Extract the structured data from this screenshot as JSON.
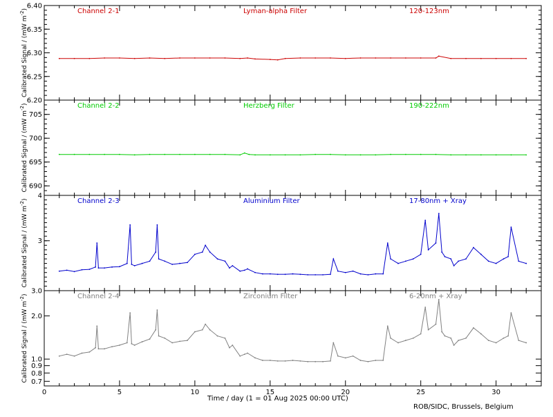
{
  "footer": {
    "xlabel": "Time / day (1 = 01 Aug 2025 00:00 UTC)",
    "credit": "ROB/SIDC, Brussels, Belgium"
  },
  "x_axis": {
    "range": [
      0,
      33
    ],
    "tick_labels": [
      "0",
      "5",
      "10",
      "15",
      "20",
      "25",
      "30"
    ],
    "tick_values": [
      0,
      5,
      10,
      15,
      20,
      25,
      30
    ],
    "minor_step": 1
  },
  "ylabel_common": "Calibrated Signal / (mW m",
  "ylabel_exp": "-2",
  "chart_data": [
    {
      "type": "line",
      "channel": "Channel 2-1",
      "filter": "Lyman-alpha Filter",
      "band": "120-123nm",
      "color": "#cc0000",
      "ylim": [
        6.2,
        6.4
      ],
      "y_ticks": [
        "6.20",
        "6.25",
        "6.30",
        "6.35",
        "6.40"
      ],
      "y_tick_values": [
        6.2,
        6.25,
        6.3,
        6.35,
        6.4
      ],
      "minor_step": 0.01,
      "x": [
        1.0,
        2.0,
        3.0,
        4.0,
        5.0,
        6.0,
        7.0,
        8.0,
        9.0,
        10.0,
        11.0,
        12.0,
        13.0,
        13.5,
        14.0,
        15.0,
        15.5,
        16.0,
        17.0,
        18.0,
        19.0,
        20.0,
        21.0,
        22.0,
        23.0,
        24.0,
        25.0,
        26.0,
        26.2,
        27.0,
        28.0,
        29.0,
        30.0,
        31.0,
        32.0
      ],
      "y": [
        6.288,
        6.288,
        6.288,
        6.289,
        6.289,
        6.288,
        6.289,
        6.288,
        6.289,
        6.289,
        6.289,
        6.289,
        6.288,
        6.289,
        6.287,
        6.286,
        6.285,
        6.288,
        6.289,
        6.289,
        6.289,
        6.288,
        6.289,
        6.289,
        6.289,
        6.289,
        6.289,
        6.289,
        6.293,
        6.288,
        6.288,
        6.288,
        6.288,
        6.288,
        6.288
      ]
    },
    {
      "type": "line",
      "channel": "Channel 2-2",
      "filter": "Herzberg Filter",
      "band": "190-222nm",
      "color": "#00cc00",
      "ylim": [
        688,
        708
      ],
      "y_ticks": [
        "690",
        "695",
        "700",
        "705"
      ],
      "y_tick_values": [
        690,
        695,
        700,
        705
      ],
      "minor_step": 1,
      "x": [
        1.0,
        2.0,
        3.0,
        4.0,
        5.0,
        6.0,
        7.0,
        8.0,
        9.0,
        10.0,
        11.0,
        12.0,
        13.0,
        13.3,
        13.6,
        14.0,
        15.0,
        16.0,
        17.0,
        18.0,
        19.0,
        20.0,
        21.0,
        22.0,
        23.0,
        24.0,
        25.0,
        26.0,
        27.0,
        28.0,
        29.0,
        30.0,
        31.0,
        32.0
      ],
      "y": [
        696.6,
        696.6,
        696.6,
        696.6,
        696.6,
        696.5,
        696.6,
        696.6,
        696.6,
        696.6,
        696.6,
        696.6,
        696.5,
        696.9,
        696.6,
        696.5,
        696.5,
        696.5,
        696.5,
        696.6,
        696.6,
        696.5,
        696.5,
        696.5,
        696.6,
        696.6,
        696.6,
        696.6,
        696.5,
        696.5,
        696.5,
        696.5,
        696.5,
        696.5
      ]
    },
    {
      "type": "line",
      "channel": "Channel 2-3",
      "filter": "Aluminium Filter",
      "band": "17-80nm + Xray",
      "color": "#0000cc",
      "ylim": [
        1.9,
        4.0
      ],
      "y_ticks": [
        "3",
        "4"
      ],
      "y_tick_values": [
        3,
        4
      ],
      "minor_step": 0.1,
      "x": [
        1.0,
        1.5,
        2.0,
        2.5,
        3.0,
        3.4,
        3.5,
        3.6,
        4.0,
        4.5,
        5.0,
        5.5,
        5.7,
        5.8,
        6.0,
        6.5,
        7.0,
        7.4,
        7.5,
        7.6,
        8.0,
        8.5,
        9.0,
        9.5,
        10.0,
        10.5,
        10.7,
        11.0,
        11.5,
        12.0,
        12.3,
        12.5,
        13.0,
        13.3,
        13.5,
        14.0,
        14.5,
        15.0,
        15.5,
        16.0,
        16.5,
        17.0,
        17.5,
        18.0,
        18.5,
        19.0,
        19.2,
        19.5,
        20.0,
        20.5,
        21.0,
        21.5,
        22.0,
        22.5,
        22.8,
        23.0,
        23.5,
        24.0,
        24.5,
        25.0,
        25.3,
        25.5,
        26.0,
        26.2,
        26.4,
        26.6,
        27.0,
        27.2,
        27.5,
        28.0,
        28.5,
        29.0,
        29.5,
        30.0,
        30.5,
        30.8,
        31.0,
        31.5,
        32.0
      ],
      "y": [
        2.33,
        2.35,
        2.32,
        2.36,
        2.37,
        2.42,
        2.95,
        2.4,
        2.4,
        2.42,
        2.43,
        2.5,
        3.35,
        2.48,
        2.45,
        2.5,
        2.55,
        2.75,
        3.35,
        2.6,
        2.55,
        2.48,
        2.5,
        2.52,
        2.7,
        2.75,
        2.9,
        2.75,
        2.6,
        2.55,
        2.4,
        2.45,
        2.33,
        2.35,
        2.38,
        2.3,
        2.27,
        2.27,
        2.26,
        2.26,
        2.27,
        2.26,
        2.25,
        2.25,
        2.25,
        2.26,
        2.6,
        2.33,
        2.3,
        2.33,
        2.27,
        2.25,
        2.27,
        2.27,
        2.95,
        2.6,
        2.5,
        2.55,
        2.6,
        2.7,
        3.45,
        2.8,
        2.95,
        3.6,
        2.75,
        2.65,
        2.6,
        2.45,
        2.55,
        2.6,
        2.85,
        2.7,
        2.55,
        2.5,
        2.6,
        2.65,
        3.3,
        2.55,
        2.5
      ]
    },
    {
      "type": "line",
      "channel": "Channel 2-4",
      "filter": "Zirconium Filter",
      "band": "6-20nm + Xray",
      "color": "#808080",
      "ylim": [
        0.65,
        3.0
      ],
      "y_ticks": [
        "0.7",
        "0.8",
        "0.9",
        "1.0",
        "2.0",
        "3.0"
      ],
      "y_tick_values": [
        0.7,
        0.8,
        0.9,
        1.0,
        2.0,
        3.0
      ],
      "scale": "log",
      "x": [
        1.0,
        1.5,
        2.0,
        2.5,
        3.0,
        3.4,
        3.5,
        3.6,
        4.0,
        4.5,
        5.0,
        5.5,
        5.7,
        5.8,
        6.0,
        6.5,
        7.0,
        7.4,
        7.5,
        7.6,
        8.0,
        8.5,
        9.0,
        9.5,
        10.0,
        10.5,
        10.7,
        11.0,
        11.5,
        12.0,
        12.3,
        12.5,
        13.0,
        13.3,
        13.5,
        14.0,
        14.5,
        15.0,
        15.5,
        16.0,
        16.5,
        17.0,
        17.5,
        18.0,
        18.5,
        19.0,
        19.2,
        19.5,
        20.0,
        20.5,
        21.0,
        21.5,
        22.0,
        22.5,
        22.8,
        23.0,
        23.5,
        24.0,
        24.5,
        25.0,
        25.3,
        25.5,
        26.0,
        26.2,
        26.4,
        26.6,
        27.0,
        27.2,
        27.5,
        28.0,
        28.5,
        29.0,
        29.5,
        30.0,
        30.5,
        30.8,
        31.0,
        31.5,
        32.0
      ],
      "y": [
        1.05,
        1.08,
        1.05,
        1.1,
        1.12,
        1.2,
        1.7,
        1.18,
        1.18,
        1.22,
        1.25,
        1.3,
        2.1,
        1.28,
        1.25,
        1.32,
        1.38,
        1.6,
        2.2,
        1.45,
        1.4,
        1.3,
        1.33,
        1.35,
        1.55,
        1.6,
        1.75,
        1.6,
        1.45,
        1.4,
        1.2,
        1.25,
        1.05,
        1.08,
        1.1,
        1.02,
        0.98,
        0.98,
        0.97,
        0.97,
        0.98,
        0.97,
        0.96,
        0.96,
        0.96,
        0.97,
        1.3,
        1.05,
        1.02,
        1.05,
        0.98,
        0.96,
        0.98,
        0.98,
        1.7,
        1.4,
        1.3,
        1.35,
        1.4,
        1.5,
        2.3,
        1.6,
        1.75,
        2.6,
        1.55,
        1.45,
        1.4,
        1.25,
        1.35,
        1.4,
        1.65,
        1.5,
        1.35,
        1.3,
        1.4,
        1.45,
        2.1,
        1.35,
        1.3
      ]
    }
  ]
}
